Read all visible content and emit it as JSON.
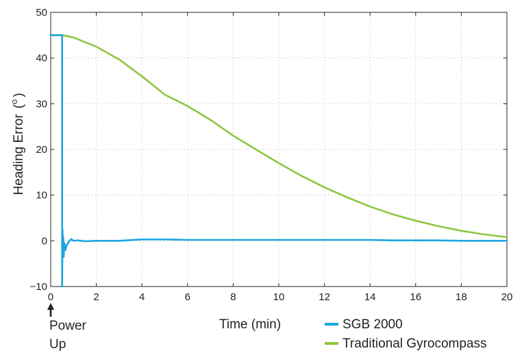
{
  "chart_data": {
    "type": "line",
    "xlabel": "Time (min)",
    "ylabel": "Heading Error",
    "ylabel_unit_base": "(",
    "ylabel_unit_sup": "o",
    "ylabel_unit_end": ")",
    "xlim": [
      0,
      20
    ],
    "ylim": [
      -10,
      50
    ],
    "xticks": [
      "0",
      "2",
      "4",
      "6",
      "8",
      "10",
      "12",
      "14",
      "16",
      "18",
      "20"
    ],
    "xtick_values": [
      0,
      2,
      4,
      6,
      8,
      10,
      12,
      14,
      16,
      18,
      20
    ],
    "yticks": [
      "−10",
      "0",
      "10",
      "20",
      "30",
      "40",
      "50"
    ],
    "ytick_values": [
      -10,
      0,
      10,
      20,
      30,
      40,
      50
    ],
    "grid": true,
    "legend_position": "bottom-right",
    "annotation": {
      "line1": "Power",
      "line2": "Up",
      "x": 0
    },
    "series": [
      {
        "name": "SGB 2000",
        "color": "#1aa7e0",
        "x": [
          0,
          0.5,
          0.5,
          0.52,
          0.53,
          0.55,
          0.57,
          0.6,
          0.65,
          0.7,
          0.8,
          0.9,
          1.0,
          1.2,
          1.5,
          2,
          3,
          4,
          5,
          6,
          7,
          8,
          9,
          10,
          11,
          12,
          13,
          14,
          15,
          16,
          17,
          18,
          19,
          20
        ],
        "y": [
          45,
          45,
          -10,
          2.5,
          -1.5,
          1.0,
          -3.5,
          -0.5,
          -2.0,
          -1.0,
          -0.2,
          0.4,
          0.0,
          0.1,
          -0.1,
          0.0,
          0.0,
          0.3,
          0.3,
          0.2,
          0.2,
          0.2,
          0.2,
          0.2,
          0.2,
          0.2,
          0.2,
          0.2,
          0.1,
          0.1,
          0.1,
          0.0,
          0.0,
          0.0
        ]
      },
      {
        "name": "Traditional Gyrocompass",
        "color": "#8cc63f",
        "x": [
          0,
          0.5,
          1,
          2,
          3,
          4,
          5,
          6,
          7,
          8,
          9,
          10,
          11,
          12,
          13,
          14,
          15,
          16,
          17,
          18,
          19,
          20
        ],
        "y": [
          45,
          45,
          44.5,
          42.5,
          39.7,
          36.0,
          32.0,
          29.5,
          26.5,
          23.0,
          20.0,
          17.0,
          14.2,
          11.7,
          9.5,
          7.5,
          5.8,
          4.4,
          3.2,
          2.2,
          1.4,
          0.8
        ]
      }
    ]
  }
}
